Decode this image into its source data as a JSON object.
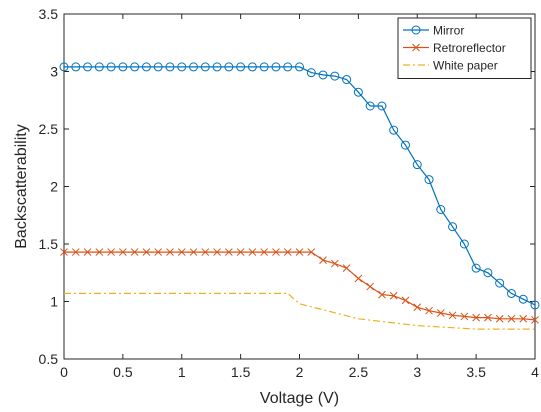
{
  "chart_data": {
    "type": "line",
    "xlabel": "Voltage (V)",
    "ylabel": "Backscatterability",
    "xlim": [
      0,
      4
    ],
    "ylim": [
      0.5,
      3.5
    ],
    "xticks": [
      0,
      0.5,
      1,
      1.5,
      2,
      2.5,
      3,
      3.5,
      4
    ],
    "yticks": [
      0.5,
      1,
      1.5,
      2,
      2.5,
      3,
      3.5
    ],
    "xtick_labels": [
      "0",
      "0.5",
      "1",
      "1.5",
      "2",
      "2.5",
      "3",
      "3.5",
      "4"
    ],
    "ytick_labels": [
      "0.5",
      "1",
      "1.5",
      "2",
      "2.5",
      "3",
      "3.5"
    ],
    "grid": false,
    "legend_position": "top-right",
    "series": [
      {
        "name": "Mirror",
        "color": "#0072BD",
        "line_style": "solid",
        "marker": "circle",
        "x": [
          0,
          0.1,
          0.2,
          0.3,
          0.4,
          0.5,
          0.6,
          0.7,
          0.8,
          0.9,
          1.0,
          1.1,
          1.2,
          1.3,
          1.4,
          1.5,
          1.6,
          1.7,
          1.8,
          1.9,
          2.0,
          2.1,
          2.2,
          2.3,
          2.4,
          2.5,
          2.6,
          2.7,
          2.8,
          2.9,
          3.0,
          3.1,
          3.2,
          3.3,
          3.4,
          3.5,
          3.6,
          3.7,
          3.8,
          3.9,
          4.0
        ],
        "y": [
          3.04,
          3.04,
          3.04,
          3.04,
          3.04,
          3.04,
          3.04,
          3.04,
          3.04,
          3.04,
          3.04,
          3.04,
          3.04,
          3.04,
          3.04,
          3.04,
          3.04,
          3.04,
          3.04,
          3.04,
          3.04,
          2.99,
          2.97,
          2.96,
          2.93,
          2.82,
          2.7,
          2.7,
          2.49,
          2.36,
          2.19,
          2.06,
          1.8,
          1.65,
          1.5,
          1.29,
          1.25,
          1.16,
          1.07,
          1.02,
          0.97
        ]
      },
      {
        "name": "Retroreflector",
        "color": "#D95319",
        "line_style": "solid",
        "marker": "x",
        "x": [
          0,
          0.1,
          0.2,
          0.3,
          0.4,
          0.5,
          0.6,
          0.7,
          0.8,
          0.9,
          1.0,
          1.1,
          1.2,
          1.3,
          1.4,
          1.5,
          1.6,
          1.7,
          1.8,
          1.9,
          2.0,
          2.1,
          2.2,
          2.3,
          2.4,
          2.5,
          2.6,
          2.7,
          2.8,
          2.9,
          3.0,
          3.1,
          3.2,
          3.3,
          3.4,
          3.5,
          3.6,
          3.7,
          3.8,
          3.9,
          4.0
        ],
        "y": [
          1.43,
          1.43,
          1.43,
          1.43,
          1.43,
          1.43,
          1.43,
          1.43,
          1.43,
          1.43,
          1.43,
          1.43,
          1.43,
          1.43,
          1.43,
          1.43,
          1.43,
          1.43,
          1.43,
          1.43,
          1.43,
          1.43,
          1.36,
          1.33,
          1.29,
          1.2,
          1.13,
          1.06,
          1.05,
          1.01,
          0.95,
          0.92,
          0.9,
          0.88,
          0.87,
          0.86,
          0.86,
          0.85,
          0.85,
          0.85,
          0.84
        ]
      },
      {
        "name": "White paper",
        "color": "#EDB120",
        "line_style": "dash-dot",
        "marker": "none",
        "x": [
          0,
          0.5,
          1.0,
          1.5,
          1.9,
          2.0,
          2.5,
          3.0,
          3.5,
          4.0
        ],
        "y": [
          1.07,
          1.07,
          1.07,
          1.07,
          1.07,
          0.98,
          0.85,
          0.79,
          0.76,
          0.76
        ]
      }
    ]
  }
}
